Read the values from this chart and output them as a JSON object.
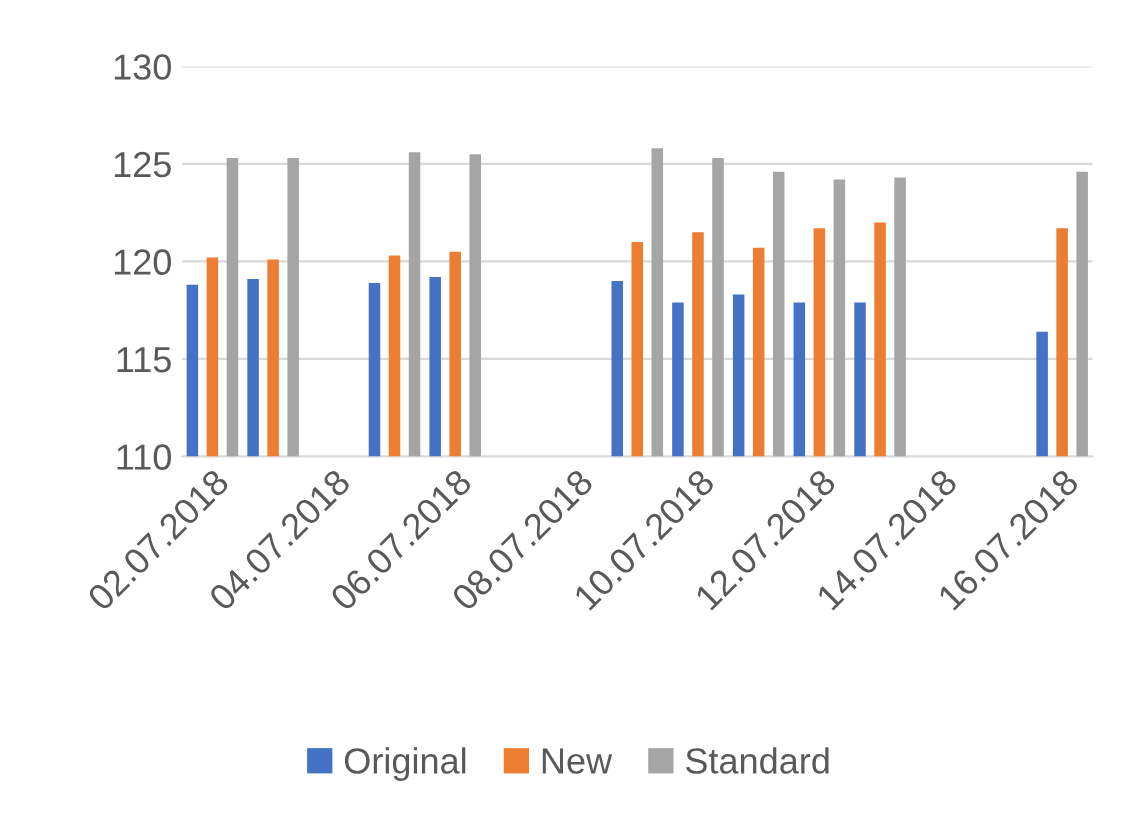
{
  "chart_data": {
    "type": "bar",
    "categories": [
      "02.07.2018",
      null,
      "04.07.2018",
      null,
      "06.07.2018",
      null,
      "08.07.2018",
      null,
      "10.07.2018",
      null,
      "12.07.2018",
      null,
      "14.07.2018",
      null,
      "16.07.2018"
    ],
    "series": [
      {
        "name": "Original",
        "color": "#4472c4",
        "values": [
          118.8,
          119.1,
          null,
          118.9,
          119.2,
          null,
          null,
          119.0,
          117.9,
          118.3,
          117.9,
          117.9,
          null,
          null,
          116.4
        ]
      },
      {
        "name": "New",
        "color": "#ed7d31",
        "values": [
          120.2,
          120.1,
          null,
          120.3,
          120.5,
          null,
          null,
          121.0,
          121.5,
          120.7,
          121.7,
          122.0,
          null,
          null,
          121.7
        ]
      },
      {
        "name": "Standard",
        "color": "#a5a5a5",
        "values": [
          125.3,
          125.3,
          null,
          125.6,
          125.5,
          null,
          null,
          125.8,
          125.3,
          124.6,
          124.2,
          124.3,
          null,
          null,
          124.6
        ]
      }
    ],
    "ylim": [
      110,
      130
    ],
    "yticks": [
      110,
      115,
      120,
      125,
      130
    ],
    "grid": "y",
    "legend": "bottom"
  }
}
